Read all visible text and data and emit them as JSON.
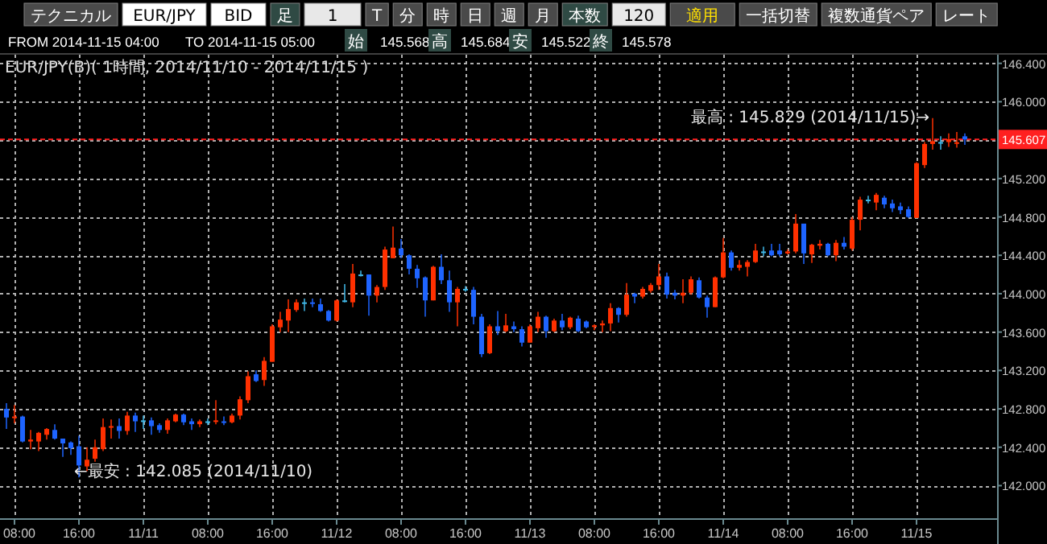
{
  "chart_data": {
    "type": "candlestick",
    "title": "EUR/JPY(B)( 1時間, 2014/11/10 - 2014/11/15 )",
    "categories": [
      null,
      "08:00",
      null,
      null,
      null,
      null,
      null,
      null,
      null,
      "16:00",
      null,
      null,
      null,
      null,
      null,
      null,
      null,
      "11/11",
      null,
      null,
      null,
      null,
      null,
      null,
      null,
      "08:00",
      null,
      null,
      null,
      null,
      null,
      null,
      null,
      "16:00",
      null,
      null,
      null,
      null,
      null,
      null,
      null,
      "11/12",
      null,
      null,
      null,
      null,
      null,
      null,
      null,
      "08:00",
      null,
      null,
      null,
      null,
      null,
      null,
      null,
      "16:00",
      null,
      null,
      null,
      null,
      null,
      null,
      null,
      "11/13",
      null,
      null,
      null,
      null,
      null,
      null,
      null,
      "08:00",
      null,
      null,
      null,
      null,
      null,
      null,
      null,
      "16:00",
      null,
      null,
      null,
      null,
      null,
      null,
      null,
      "11/14",
      null,
      null,
      null,
      null,
      null,
      null,
      null,
      "08:00",
      null,
      null,
      null,
      null,
      null,
      null,
      null,
      "16:00",
      null,
      null,
      null,
      null,
      null,
      null,
      null,
      "11/15",
      null,
      null,
      null,
      null,
      null,
      null
    ],
    "ohlc": [
      [
        142.8,
        142.86,
        142.59,
        142.71
      ],
      [
        142.71,
        142.84,
        142.65,
        142.72
      ],
      [
        142.72,
        142.73,
        142.45,
        142.46
      ],
      [
        142.46,
        142.58,
        142.38,
        142.48
      ],
      [
        142.46,
        142.56,
        142.36,
        142.55
      ],
      [
        142.53,
        142.6,
        142.48,
        142.59
      ],
      [
        142.58,
        142.64,
        142.48,
        142.49
      ],
      [
        142.49,
        142.49,
        142.3,
        142.44
      ],
      [
        142.45,
        142.46,
        142.32,
        142.39
      ],
      [
        142.41,
        142.52,
        142.085,
        142.21
      ],
      [
        142.2,
        142.4,
        142.15,
        142.27
      ],
      [
        142.28,
        142.48,
        142.25,
        142.4
      ],
      [
        142.38,
        142.7,
        142.36,
        142.61
      ],
      [
        142.61,
        142.69,
        142.49,
        142.62
      ],
      [
        142.62,
        142.7,
        142.49,
        142.57
      ],
      [
        142.57,
        142.77,
        142.53,
        142.73
      ],
      [
        142.73,
        142.76,
        142.56,
        142.67
      ],
      [
        142.68,
        142.73,
        142.59,
        142.68
      ],
      [
        142.68,
        142.71,
        142.53,
        142.62
      ],
      [
        142.63,
        142.65,
        142.55,
        142.58
      ],
      [
        142.58,
        142.7,
        142.54,
        142.68
      ],
      [
        142.67,
        142.75,
        142.66,
        142.74
      ],
      [
        142.74,
        142.75,
        142.63,
        142.66
      ],
      [
        142.67,
        142.7,
        142.58,
        142.64
      ],
      [
        142.64,
        142.69,
        142.61,
        142.67
      ],
      [
        142.67,
        142.7,
        142.63,
        142.67
      ],
      [
        142.67,
        142.89,
        142.64,
        142.68
      ],
      [
        142.67,
        142.72,
        142.63,
        142.66
      ],
      [
        142.66,
        142.75,
        142.65,
        142.73
      ],
      [
        142.73,
        142.93,
        142.69,
        142.9
      ],
      [
        142.89,
        143.19,
        142.86,
        143.14
      ],
      [
        143.16,
        143.2,
        143.08,
        143.09
      ],
      [
        143.1,
        143.34,
        143.04,
        143.3
      ],
      [
        143.29,
        143.68,
        143.29,
        143.66
      ],
      [
        143.65,
        143.81,
        143.6,
        143.73
      ],
      [
        143.72,
        143.94,
        143.6,
        143.84
      ],
      [
        143.83,
        143.94,
        143.81,
        143.91
      ],
      [
        143.91,
        143.95,
        143.82,
        143.91
      ],
      [
        143.91,
        143.95,
        143.86,
        143.9
      ],
      [
        143.89,
        143.95,
        143.81,
        143.82
      ],
      [
        143.82,
        143.83,
        143.71,
        143.72
      ],
      [
        143.72,
        143.94,
        143.71,
        143.93
      ],
      [
        143.93,
        144.1,
        143.91,
        143.93
      ],
      [
        143.91,
        144.31,
        143.86,
        144.21
      ],
      [
        144.2,
        144.24,
        144.18,
        144.2
      ],
      [
        144.2,
        144.2,
        143.77,
        143.98
      ],
      [
        143.98,
        144.09,
        143.91,
        144.07
      ],
      [
        144.07,
        144.49,
        144.04,
        144.46
      ],
      [
        144.37,
        144.7,
        144.37,
        144.48
      ],
      [
        144.47,
        144.57,
        144.37,
        144.4
      ],
      [
        144.4,
        144.41,
        144.2,
        144.26
      ],
      [
        144.26,
        144.3,
        144.06,
        144.16
      ],
      [
        144.17,
        144.18,
        143.76,
        143.93
      ],
      [
        143.93,
        144.29,
        143.93,
        144.28
      ],
      [
        144.28,
        144.41,
        144.1,
        144.14
      ],
      [
        144.14,
        144.24,
        143.81,
        143.91
      ],
      [
        143.91,
        144.07,
        143.66,
        144.05
      ],
      [
        144.05,
        144.08,
        144.02,
        144.05
      ],
      [
        144.04,
        144.07,
        143.68,
        143.76
      ],
      [
        143.76,
        143.79,
        143.34,
        143.37
      ],
      [
        143.38,
        143.68,
        143.37,
        143.66
      ],
      [
        143.66,
        143.82,
        143.57,
        143.61
      ],
      [
        143.61,
        143.79,
        143.6,
        143.67
      ],
      [
        143.66,
        143.71,
        143.6,
        143.63
      ],
      [
        143.63,
        143.66,
        143.45,
        143.49
      ],
      [
        143.49,
        143.68,
        143.49,
        143.66
      ],
      [
        143.64,
        143.81,
        143.6,
        143.76
      ],
      [
        143.76,
        143.77,
        143.54,
        143.61
      ],
      [
        143.61,
        143.74,
        143.6,
        143.72
      ],
      [
        143.72,
        143.79,
        143.62,
        143.65
      ],
      [
        143.65,
        143.76,
        143.63,
        143.75
      ],
      [
        143.74,
        143.77,
        143.6,
        143.61
      ],
      [
        143.71,
        143.72,
        143.64,
        143.65
      ],
      [
        143.66,
        143.68,
        143.62,
        143.67
      ],
      [
        143.67,
        143.72,
        143.6,
        143.69
      ],
      [
        143.69,
        143.9,
        143.61,
        143.85
      ],
      [
        143.85,
        143.86,
        143.7,
        143.78
      ],
      [
        143.78,
        144.11,
        143.76,
        143.99
      ],
      [
        144.0,
        144.01,
        143.9,
        143.97
      ],
      [
        143.97,
        144.07,
        143.95,
        144.05
      ],
      [
        144.03,
        144.11,
        144.01,
        144.09
      ],
      [
        144.09,
        144.31,
        144.04,
        144.18
      ],
      [
        144.18,
        144.22,
        143.95,
        143.99
      ],
      [
        144.01,
        144.04,
        143.94,
        143.98
      ],
      [
        143.98,
        144.15,
        143.9,
        144.01
      ],
      [
        144.01,
        144.18,
        143.99,
        144.15
      ],
      [
        144.14,
        144.17,
        143.95,
        143.96
      ],
      [
        143.96,
        143.98,
        143.75,
        143.86
      ],
      [
        143.86,
        144.18,
        143.86,
        144.17
      ],
      [
        144.17,
        144.58,
        144.16,
        144.43
      ],
      [
        144.43,
        144.45,
        144.24,
        144.27
      ],
      [
        144.27,
        144.35,
        144.24,
        144.3
      ],
      [
        144.28,
        144.35,
        144.18,
        144.33
      ],
      [
        144.33,
        144.52,
        144.32,
        144.45
      ],
      [
        144.44,
        144.49,
        144.39,
        144.44
      ],
      [
        144.45,
        144.52,
        144.39,
        144.4
      ],
      [
        144.45,
        144.52,
        144.39,
        144.41
      ],
      [
        144.42,
        144.46,
        144.41,
        144.44
      ],
      [
        144.44,
        144.83,
        144.42,
        144.73
      ],
      [
        144.73,
        144.73,
        144.31,
        144.42
      ],
      [
        144.41,
        144.52,
        144.32,
        144.51
      ],
      [
        144.5,
        144.56,
        144.46,
        144.52
      ],
      [
        144.52,
        144.53,
        144.39,
        144.4
      ],
      [
        144.4,
        144.56,
        144.34,
        144.53
      ],
      [
        144.53,
        144.59,
        144.46,
        144.49
      ],
      [
        144.47,
        144.8,
        144.45,
        144.77
      ],
      [
        144.77,
        145.01,
        144.66,
        144.98
      ],
      [
        144.98,
        145.02,
        144.94,
        144.98
      ],
      [
        144.95,
        145.05,
        144.87,
        145.03
      ],
      [
        145.0,
        145.02,
        144.89,
        144.93
      ],
      [
        144.94,
        144.98,
        144.85,
        144.89
      ],
      [
        144.91,
        144.95,
        144.83,
        144.87
      ],
      [
        144.88,
        144.91,
        144.79,
        144.8
      ],
      [
        144.79,
        145.37,
        144.79,
        145.36
      ],
      [
        145.34,
        145.58,
        145.31,
        145.56
      ],
      [
        145.56,
        145.829,
        145.5,
        145.59
      ],
      [
        145.58,
        145.64,
        145.5,
        145.58
      ],
      [
        145.58,
        145.67,
        145.53,
        145.61
      ],
      [
        145.568,
        145.684,
        145.522,
        145.578
      ],
      [
        145.64,
        145.67,
        145.55,
        145.607
      ]
    ],
    "colors": [
      "#1e64ff",
      "#ff3000",
      "#1e64ff",
      "#ff3000",
      "#ff3000",
      "#ff3000",
      "#1e64ff",
      "#1e64ff",
      "#1e64ff",
      "#1e64ff",
      "#ff3000",
      "#ff3000",
      "#ff3000",
      "#ff3000",
      "#1e64ff",
      "#ff3000",
      "#1e64ff",
      "#40b8e8",
      "#1e64ff",
      "#1e64ff",
      "#ff3000",
      "#ff3000",
      "#1e64ff",
      "#1e64ff",
      "#ff3000",
      "#40b8e8",
      "#ff3000",
      "#1e64ff",
      "#ff3000",
      "#ff3000",
      "#ff3000",
      "#1e64ff",
      "#ff3000",
      "#ff3000",
      "#ff3000",
      "#ff3000",
      "#ff3000",
      "#40b8e8",
      "#1e64ff",
      "#1e64ff",
      "#1e64ff",
      "#ff3000",
      "#40b8e8",
      "#ff3000",
      "#40b8e8",
      "#1e64ff",
      "#ff3000",
      "#ff3000",
      "#ff3000",
      "#1e64ff",
      "#1e64ff",
      "#1e64ff",
      "#1e64ff",
      "#ff3000",
      "#1e64ff",
      "#1e64ff",
      "#ff3000",
      "#40b8e8",
      "#1e64ff",
      "#1e64ff",
      "#ff3000",
      "#1e64ff",
      "#ff3000",
      "#1e64ff",
      "#1e64ff",
      "#ff3000",
      "#ff3000",
      "#1e64ff",
      "#ff3000",
      "#1e64ff",
      "#ff3000",
      "#1e64ff",
      "#1e64ff",
      "#ff3000",
      "#ff3000",
      "#ff3000",
      "#1e64ff",
      "#ff3000",
      "#1e64ff",
      "#ff3000",
      "#ff3000",
      "#ff3000",
      "#1e64ff",
      "#1e64ff",
      "#ff3000",
      "#ff3000",
      "#1e64ff",
      "#1e64ff",
      "#ff3000",
      "#ff3000",
      "#1e64ff",
      "#ff3000",
      "#ff3000",
      "#ff3000",
      "#40b8e8",
      "#1e64ff",
      "#1e64ff",
      "#ff3000",
      "#ff3000",
      "#1e64ff",
      "#ff3000",
      "#ff3000",
      "#1e64ff",
      "#ff3000",
      "#1e64ff",
      "#ff3000",
      "#ff3000",
      "#40b8e8",
      "#ff3000",
      "#1e64ff",
      "#1e64ff",
      "#1e64ff",
      "#1e64ff",
      "#ff3000",
      "#ff3000",
      "#ff3000",
      "#40b8e8",
      "#ff3000",
      "#ff3000",
      "#1e64ff"
    ],
    "ylim": [
      141.66,
      146.49
    ],
    "yticks": [
      {
        "value": 142,
        "label": "142.000"
      },
      {
        "value": 142.4,
        "label": "142.400"
      },
      {
        "value": 142.8,
        "label": "142.800"
      },
      {
        "value": 143.2,
        "label": "143.200"
      },
      {
        "value": 143.6,
        "label": "143.600"
      },
      {
        "value": 144,
        "label": "144.000"
      },
      {
        "value": 144.4,
        "label": "144.400"
      },
      {
        "value": 144.8,
        "label": "144.800"
      },
      {
        "value": 145.2,
        "label": "145.200"
      },
      {
        "value": 145.6,
        "label": null
      },
      {
        "value": 146,
        "label": "146.000"
      },
      {
        "value": 146.4,
        "label": "146.400"
      }
    ],
    "grid": true,
    "ref_lines": [
      {
        "axis": "y",
        "value": 145.607,
        "label": "145.607",
        "color": "#ff2020",
        "line_style": "dashed"
      }
    ],
    "annotations": [
      "テクニカル",
      "EUR/JPY",
      "BID",
      "足",
      "1",
      "T",
      "分",
      "時",
      "日",
      "週",
      "月",
      "本数",
      "120",
      "適用",
      "一括切替",
      "複数通貨ペア",
      "レート",
      "FROM 2014-11-15 04:00",
      "TO 2014-11-15 05:00",
      "始",
      "145.568",
      "高",
      "145.684",
      "安",
      "145.522",
      "終",
      "145.578",
      "←最安 : 142.085 (2014/11/10)",
      "最高 : 145.829 (2014/11/15)→"
    ]
  }
}
